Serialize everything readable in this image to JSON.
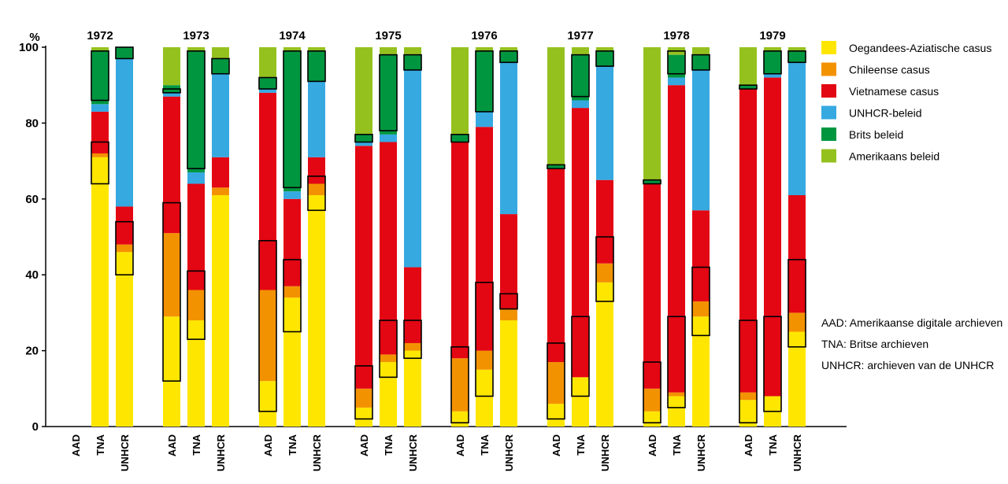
{
  "chart_data": {
    "type": "bar",
    "stacked": true,
    "ylabel": "%",
    "ylim": [
      0,
      100
    ],
    "yticks": [
      0,
      20,
      40,
      60,
      80,
      100
    ],
    "grid": false,
    "legend_position": "right",
    "years": [
      "1972",
      "1973",
      "1974",
      "1975",
      "1976",
      "1977",
      "1978",
      "1979"
    ],
    "sources": [
      "AAD",
      "TNA",
      "UNHCR"
    ],
    "series": [
      {
        "name": "Oegandees-Aziatische casus",
        "color": "#ffe600"
      },
      {
        "name": "Chileense casus",
        "color": "#f39200"
      },
      {
        "name": "Vietnamese casus",
        "color": "#e30613"
      },
      {
        "name": "UNHCR-beleid",
        "color": "#36a9e1"
      },
      {
        "name": "Brits beleid",
        "color": "#009640"
      },
      {
        "name": "Amerikaans beleid",
        "color": "#95c11f"
      }
    ],
    "bars": [
      {
        "year": "1972",
        "source": "AAD",
        "values": [
          0,
          0,
          0,
          0,
          0,
          0
        ]
      },
      {
        "year": "1972",
        "source": "TNA",
        "values": [
          71,
          1,
          11,
          2,
          14,
          1
        ]
      },
      {
        "year": "1972",
        "source": "UNHCR",
        "values": [
          46,
          2,
          10,
          39,
          3,
          0
        ]
      },
      {
        "year": "1973",
        "source": "AAD",
        "values": [
          29,
          22,
          36,
          1,
          2,
          10
        ]
      },
      {
        "year": "1973",
        "source": "TNA",
        "values": [
          28,
          8,
          28,
          3,
          32,
          1
        ]
      },
      {
        "year": "1973",
        "source": "UNHCR",
        "values": [
          61,
          2,
          8,
          22,
          4,
          3
        ]
      },
      {
        "year": "1974",
        "source": "AAD",
        "values": [
          12,
          24,
          52,
          1,
          3,
          8
        ]
      },
      {
        "year": "1974",
        "source": "TNA",
        "values": [
          34,
          3,
          23,
          2,
          37,
          1
        ]
      },
      {
        "year": "1974",
        "source": "UNHCR",
        "values": [
          61,
          3,
          7,
          20,
          8,
          1
        ]
      },
      {
        "year": "1975",
        "source": "AAD",
        "values": [
          5,
          5,
          64,
          1,
          2,
          23
        ]
      },
      {
        "year": "1975",
        "source": "TNA",
        "values": [
          17,
          2,
          56,
          2,
          21,
          2
        ]
      },
      {
        "year": "1975",
        "source": "UNHCR",
        "values": [
          20,
          2,
          20,
          52,
          4,
          2
        ]
      },
      {
        "year": "1976",
        "source": "AAD",
        "values": [
          4,
          14,
          57,
          0,
          2,
          23
        ]
      },
      {
        "year": "1976",
        "source": "TNA",
        "values": [
          15,
          5,
          59,
          4,
          16,
          1
        ]
      },
      {
        "year": "1976",
        "source": "UNHCR",
        "values": [
          28,
          3,
          25,
          40,
          3,
          1
        ]
      },
      {
        "year": "1977",
        "source": "AAD",
        "values": [
          6,
          11,
          51,
          0,
          1,
          31
        ]
      },
      {
        "year": "1977",
        "source": "TNA",
        "values": [
          13,
          0,
          71,
          2,
          12,
          2
        ]
      },
      {
        "year": "1977",
        "source": "UNHCR",
        "values": [
          38,
          5,
          22,
          30,
          4,
          1
        ]
      },
      {
        "year": "1978",
        "source": "AAD",
        "values": [
          4,
          6,
          54,
          0,
          1,
          35
        ]
      },
      {
        "year": "1978",
        "source": "TNA",
        "values": [
          8,
          1,
          81,
          2,
          6,
          2
        ]
      },
      {
        "year": "1978",
        "source": "UNHCR",
        "values": [
          29,
          4,
          24,
          37,
          4,
          2
        ]
      },
      {
        "year": "1979",
        "source": "AAD",
        "values": [
          7,
          2,
          80,
          0,
          1,
          10
        ]
      },
      {
        "year": "1979",
        "source": "TNA",
        "values": [
          8,
          0,
          84,
          1,
          6,
          1
        ]
      },
      {
        "year": "1979",
        "source": "UNHCR",
        "values": [
          25,
          5,
          31,
          35,
          3,
          1
        ]
      }
    ],
    "highlight_boxes": [
      {
        "year": "1972",
        "source": "TNA",
        "from": 64,
        "to": 75
      },
      {
        "year": "1972",
        "source": "TNA",
        "from": 86,
        "to": 99
      },
      {
        "year": "1972",
        "source": "UNHCR",
        "from": 40,
        "to": 54
      },
      {
        "year": "1972",
        "source": "UNHCR",
        "from": 97,
        "to": 100
      },
      {
        "year": "1973",
        "source": "AAD",
        "from": 12,
        "to": 59
      },
      {
        "year": "1973",
        "source": "AAD",
        "from": 88,
        "to": 89
      },
      {
        "year": "1973",
        "source": "TNA",
        "from": 23,
        "to": 41
      },
      {
        "year": "1973",
        "source": "TNA",
        "from": 68,
        "to": 99
      },
      {
        "year": "1973",
        "source": "UNHCR",
        "from": 93,
        "to": 97
      },
      {
        "year": "1974",
        "source": "AAD",
        "from": 4,
        "to": 49
      },
      {
        "year": "1974",
        "source": "AAD",
        "from": 89,
        "to": 92
      },
      {
        "year": "1974",
        "source": "TNA",
        "from": 25,
        "to": 44
      },
      {
        "year": "1974",
        "source": "TNA",
        "from": 63,
        "to": 99
      },
      {
        "year": "1974",
        "source": "UNHCR",
        "from": 57,
        "to": 66
      },
      {
        "year": "1974",
        "source": "UNHCR",
        "from": 91,
        "to": 99
      },
      {
        "year": "1975",
        "source": "AAD",
        "from": 2,
        "to": 16
      },
      {
        "year": "1975",
        "source": "AAD",
        "from": 75,
        "to": 77
      },
      {
        "year": "1975",
        "source": "TNA",
        "from": 13,
        "to": 28
      },
      {
        "year": "1975",
        "source": "TNA",
        "from": 78,
        "to": 98
      },
      {
        "year": "1975",
        "source": "UNHCR",
        "from": 18,
        "to": 28
      },
      {
        "year": "1975",
        "source": "UNHCR",
        "from": 94,
        "to": 98
      },
      {
        "year": "1976",
        "source": "AAD",
        "from": 1,
        "to": 21
      },
      {
        "year": "1976",
        "source": "AAD",
        "from": 75,
        "to": 77
      },
      {
        "year": "1976",
        "source": "TNA",
        "from": 8,
        "to": 38
      },
      {
        "year": "1976",
        "source": "TNA",
        "from": 83,
        "to": 99
      },
      {
        "year": "1976",
        "source": "UNHCR",
        "from": 31,
        "to": 35
      },
      {
        "year": "1976",
        "source": "UNHCR",
        "from": 96,
        "to": 99
      },
      {
        "year": "1977",
        "source": "AAD",
        "from": 2,
        "to": 22
      },
      {
        "year": "1977",
        "source": "AAD",
        "from": 68,
        "to": 69
      },
      {
        "year": "1977",
        "source": "TNA",
        "from": 8,
        "to": 29
      },
      {
        "year": "1977",
        "source": "TNA",
        "from": 87,
        "to": 98
      },
      {
        "year": "1977",
        "source": "UNHCR",
        "from": 33,
        "to": 50
      },
      {
        "year": "1977",
        "source": "UNHCR",
        "from": 95,
        "to": 99
      },
      {
        "year": "1978",
        "source": "AAD",
        "from": 1,
        "to": 17
      },
      {
        "year": "1978",
        "source": "AAD",
        "from": 64,
        "to": 65
      },
      {
        "year": "1978",
        "source": "TNA",
        "from": 5,
        "to": 29
      },
      {
        "year": "1978",
        "source": "TNA",
        "from": 93,
        "to": 99
      },
      {
        "year": "1978",
        "source": "UNHCR",
        "from": 24,
        "to": 42
      },
      {
        "year": "1978",
        "source": "UNHCR",
        "from": 94,
        "to": 98
      },
      {
        "year": "1979",
        "source": "AAD",
        "from": 1,
        "to": 28
      },
      {
        "year": "1979",
        "source": "AAD",
        "from": 89,
        "to": 90
      },
      {
        "year": "1979",
        "source": "TNA",
        "from": 4,
        "to": 29
      },
      {
        "year": "1979",
        "source": "TNA",
        "from": 93,
        "to": 99
      },
      {
        "year": "1979",
        "source": "UNHCR",
        "from": 21,
        "to": 44
      },
      {
        "year": "1979",
        "source": "UNHCR",
        "from": 96,
        "to": 99
      }
    ],
    "source_notes": [
      "AAD: Amerikaanse digitale archieven",
      "TNA: Britse archieven",
      "UNHCR: archieven van de UNHCR"
    ]
  }
}
